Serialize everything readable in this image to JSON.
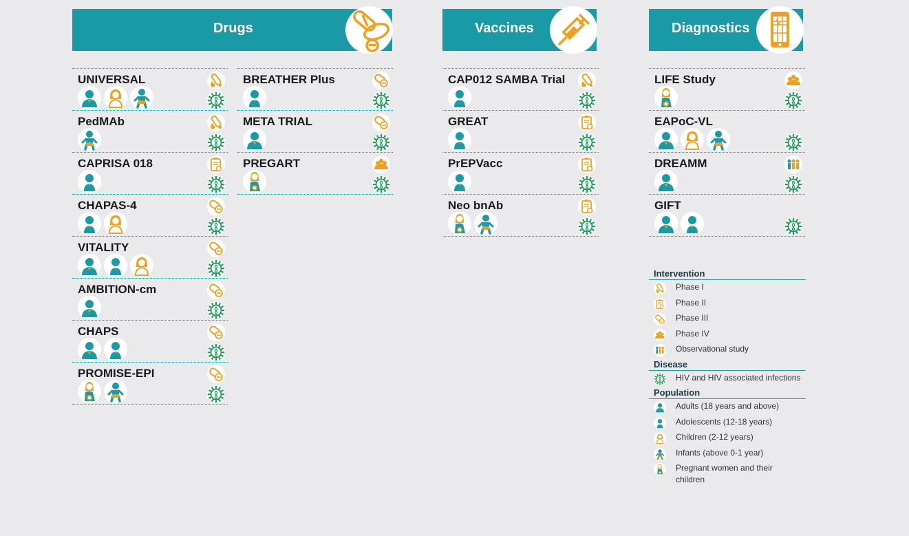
{
  "sections": [
    {
      "title": "Drugs",
      "icon": "pills-icon"
    },
    {
      "title": "Vaccines",
      "icon": "syringe-icon"
    },
    {
      "title": "Diagnostics",
      "icon": "mobile-device-icon"
    }
  ],
  "columns": {
    "drugs_left": [
      {
        "name": "UNIVERSAL",
        "phase": "phase-1",
        "disease": "hiv",
        "populations": [
          "adult",
          "child",
          "infant"
        ]
      },
      {
        "name": "PedMAb",
        "phase": "phase-1",
        "disease": "hiv",
        "populations": [
          "infant"
        ]
      },
      {
        "name": "CAPRISA 018",
        "phase": "phase-2",
        "disease": "hiv",
        "populations": [
          "adolescent"
        ]
      },
      {
        "name": "CHAPAS-4",
        "phase": "phase-3",
        "disease": "hiv",
        "populations": [
          "adolescent",
          "child"
        ]
      },
      {
        "name": "VITALITY",
        "phase": "phase-3",
        "disease": "hiv",
        "populations": [
          "adult",
          "adolescent",
          "child"
        ]
      },
      {
        "name": "AMBITION-cm",
        "phase": "phase-3",
        "disease": "hiv",
        "populations": [
          "adult"
        ]
      },
      {
        "name": "CHAPS",
        "phase": "phase-3",
        "disease": "hiv",
        "populations": [
          "adult",
          "adolescent"
        ]
      },
      {
        "name": "PROMISE-EPI",
        "phase": "phase-3",
        "disease": "hiv",
        "populations": [
          "pregnant",
          "infant"
        ]
      }
    ],
    "drugs_right": [
      {
        "name": "BREATHER Plus",
        "phase": "phase-3",
        "disease": "hiv",
        "populations": [
          "adolescent"
        ]
      },
      {
        "name": "META TRIAL",
        "phase": "phase-3",
        "disease": "hiv",
        "populations": [
          "adult"
        ]
      },
      {
        "name": "PREGART",
        "phase": "phase-4",
        "disease": "hiv",
        "populations": [
          "pregnant"
        ]
      }
    ],
    "vaccines": [
      {
        "name": "CAP012 SAMBA Trial",
        "phase": "phase-1",
        "disease": "hiv",
        "populations": [
          "adolescent"
        ]
      },
      {
        "name": "GREAT",
        "phase": "phase-2",
        "disease": "hiv",
        "populations": [
          "adolescent"
        ]
      },
      {
        "name": "PrEPVacc",
        "phase": "phase-2",
        "disease": "hiv",
        "populations": [
          "adolescent"
        ]
      },
      {
        "name": "Neo bnAb",
        "phase": "phase-2",
        "disease": "hiv",
        "populations": [
          "pregnant",
          "infant"
        ]
      }
    ],
    "diagnostics": [
      {
        "name": "LIFE Study",
        "phase": "phase-4",
        "disease": "hiv",
        "populations": [
          "pregnant"
        ]
      },
      {
        "name": "EAPoC-VL",
        "phase": "",
        "disease": "hiv",
        "populations": [
          "adult",
          "child",
          "infant"
        ]
      },
      {
        "name": "DREAMM",
        "phase": "observational",
        "disease": "hiv",
        "populations": [
          "adult"
        ]
      },
      {
        "name": "GIFT",
        "phase": "",
        "disease": "hiv",
        "populations": [
          "adult",
          "adolescent"
        ]
      }
    ]
  },
  "legend": {
    "intervention": {
      "title": "Intervention",
      "items": [
        {
          "icon": "phase-1",
          "label": "Phase I"
        },
        {
          "icon": "phase-2",
          "label": "Phase II"
        },
        {
          "icon": "phase-3",
          "label": "Phase III"
        },
        {
          "icon": "phase-4",
          "label": "Phase IV"
        },
        {
          "icon": "observational",
          "label": "Observational study"
        }
      ]
    },
    "disease": {
      "title": "Disease",
      "items": [
        {
          "icon": "hiv",
          "label": "HIV and HIV associated infections"
        }
      ]
    },
    "population": {
      "title": "Population",
      "items": [
        {
          "icon": "adult",
          "label": "Adults (18 years and above)"
        },
        {
          "icon": "adolescent",
          "label": "Adolescents (12-18 years)"
        },
        {
          "icon": "child",
          "label": "Children (2-12 years)"
        },
        {
          "icon": "infant",
          "label": "Infants (above 0-1 year)"
        },
        {
          "icon": "pregnant",
          "label": "Pregnant women and their children"
        }
      ]
    }
  },
  "colors": {
    "teal": "#1a9aa6",
    "orange": "#f0a020",
    "green": "#1a9a55"
  }
}
